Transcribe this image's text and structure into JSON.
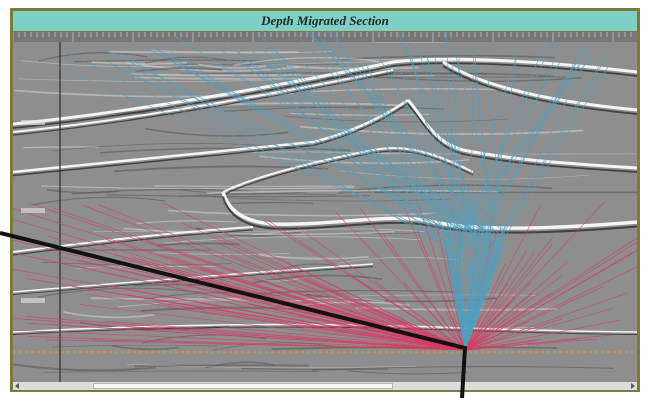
{
  "window": {
    "title": "Depth Migrated Section"
  },
  "colors": {
    "frame": "#7d7b3c",
    "titlebar": "#7ecfc6",
    "ray_down": "#d83a66",
    "ray_up": "#4fa0c0",
    "horizon_marker": "#e08a2a",
    "pointer_line": "#111111"
  },
  "top_axis": {
    "ticks": [
      "",
      "",
      "",
      "",
      "",
      "",
      "",
      ""
    ]
  },
  "depth_axis": {
    "ticks": [
      "",
      "",
      "",
      ""
    ]
  },
  "icons": {
    "scroll_left": "arrow-left-icon",
    "scroll_right": "arrow-right-icon"
  }
}
